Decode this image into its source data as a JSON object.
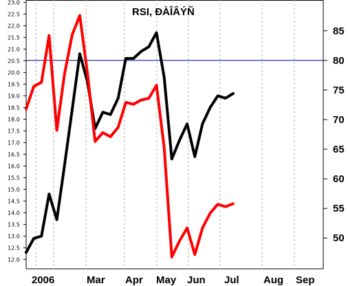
{
  "chart_data": {
    "type": "line",
    "title": "RSI, ÐÀÎÂÝÑ",
    "x_labels": [
      "2006",
      "Mar",
      "Apr",
      "May",
      "Jun",
      "Jul",
      "Aug",
      "Sep"
    ],
    "left_axis": {
      "ticks": [
        "12.0",
        "12.5",
        "13.0",
        "13.5",
        "14.0",
        "14.5",
        "15.0",
        "15.5",
        "16.0",
        "16.5",
        "17.0",
        "17.5",
        "18.0",
        "18.5",
        "19.0",
        "19.5",
        "20.0",
        "20.5",
        "21.0",
        "21.5",
        "22.0",
        "22.5",
        "23.0"
      ],
      "range": [
        11.6,
        23.1
      ]
    },
    "right_axis": {
      "ticks": [
        "50",
        "55",
        "60",
        "65",
        "70",
        "75",
        "80",
        "85"
      ],
      "range": [
        44.8,
        90.2
      ]
    },
    "reference_line": {
      "value": 80,
      "color": "#000080"
    },
    "grid": "vertical dashed",
    "series": [
      {
        "color": "#000000",
        "axis": "left",
        "values": [
          12.3,
          12.9,
          13.0,
          14.8,
          13.7,
          16.0,
          18.4,
          20.8,
          19.6,
          17.6,
          18.3,
          18.2,
          18.9,
          20.6,
          20.6,
          20.9,
          21.1,
          21.7,
          19.8,
          16.3,
          17.1,
          17.8,
          16.4,
          17.8,
          18.5,
          19.0,
          18.9,
          19.1
        ]
      },
      {
        "color": "#ff0000",
        "axis": "right",
        "values": [
          71.8,
          75.6,
          76.3,
          84.2,
          68.2,
          77.6,
          84.3,
          87.6,
          77.8,
          66.3,
          67.8,
          67.1,
          68.7,
          72.9,
          72.6,
          73.3,
          73.6,
          75.8,
          65.3,
          46.8,
          49.5,
          51.7,
          47.2,
          51.7,
          54.2,
          55.7,
          55.3,
          55.8
        ]
      }
    ]
  }
}
